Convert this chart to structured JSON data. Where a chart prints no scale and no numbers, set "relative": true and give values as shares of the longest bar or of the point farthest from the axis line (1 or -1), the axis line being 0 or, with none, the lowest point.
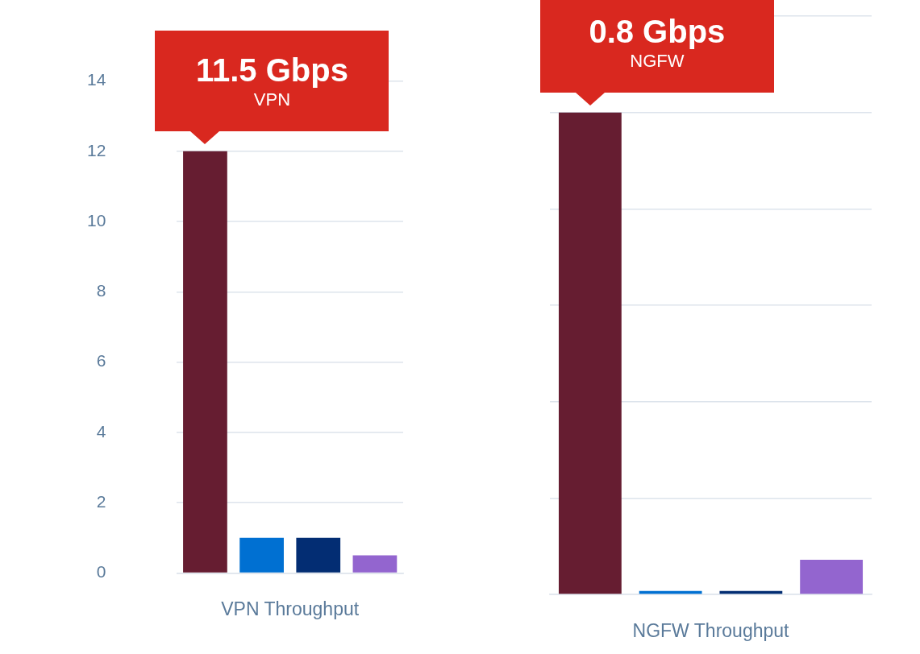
{
  "chart_data": [
    {
      "type": "bar",
      "xlabel": "VPN Throughput",
      "categories": [
        null,
        null,
        null,
        null
      ],
      "values": [
        12,
        1.0,
        1.0,
        0.5
      ],
      "colors": [
        "#661d31",
        "#0070d2",
        "#032d73",
        "#9365cf"
      ],
      "ylim": [
        0,
        14
      ],
      "yticks": [
        0,
        2,
        4,
        6,
        8,
        10,
        12,
        14
      ],
      "grid": "y",
      "annotations": [
        "11.5 Gbps",
        "VPN"
      ]
    },
    {
      "type": "bar",
      "xlabel": "NGFW Throughput",
      "categories": [
        null,
        null,
        null,
        null
      ],
      "values": [
        1,
        0.007,
        0.007,
        0.072
      ],
      "colors": [
        "#661d31",
        "#0070d2",
        "#032d73",
        "#9365cf"
      ],
      "relative": true,
      "grid": "y",
      "annotations": [
        "0.8 Gbps",
        "NGFW"
      ]
    }
  ]
}
